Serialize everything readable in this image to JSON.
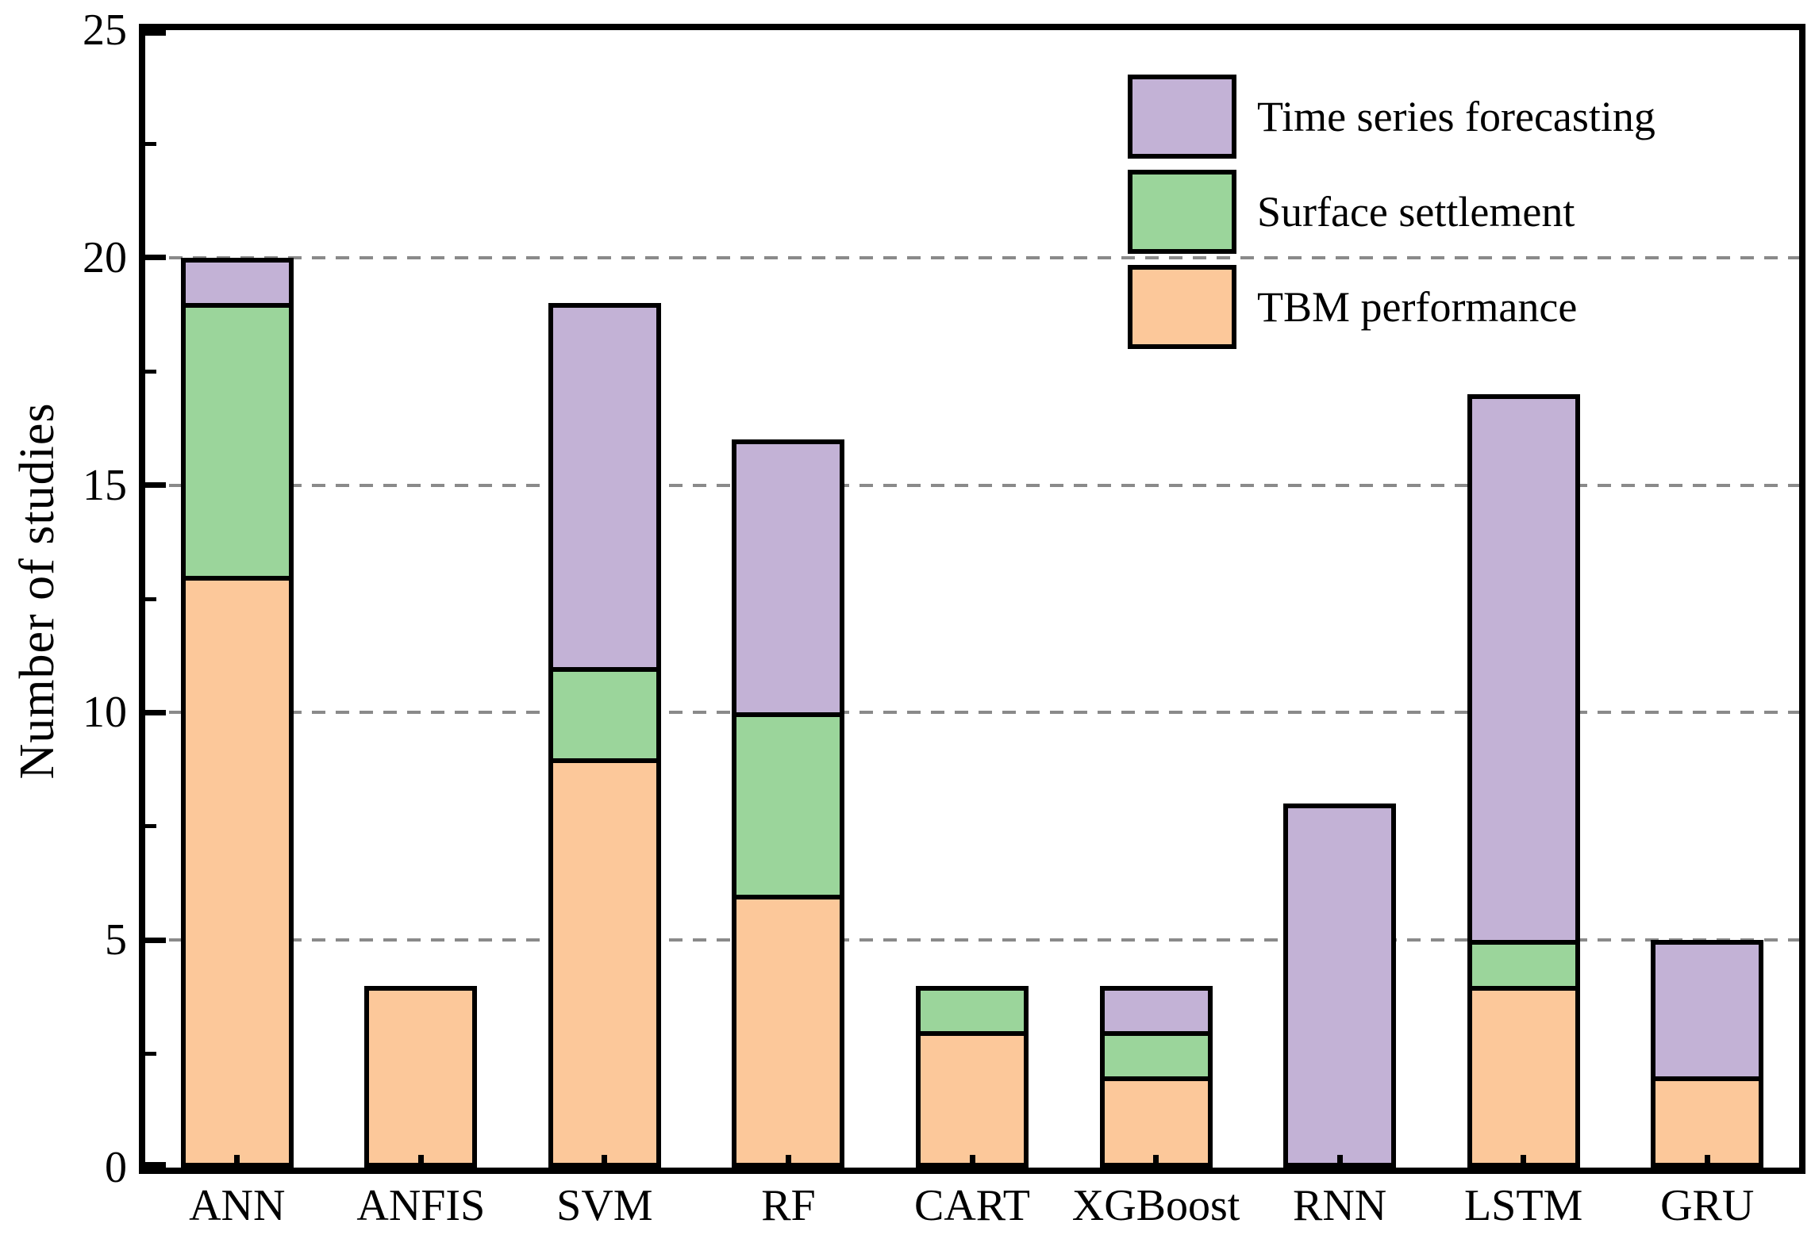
{
  "chart_data": {
    "type": "bar",
    "stacked": true,
    "title": "",
    "xlabel": "",
    "ylabel": "Number of studies",
    "categories": [
      "ANN",
      "ANFIS",
      "SVM",
      "RF",
      "CART",
      "XGBoost",
      "RNN",
      "LSTM",
      "GRU"
    ],
    "series": [
      {
        "name": "TBM performance",
        "color": "#fcc89a",
        "values": [
          13,
          4,
          9,
          6,
          3,
          2,
          0,
          4,
          2
        ]
      },
      {
        "name": "Surface settlement",
        "color": "#9bd59b",
        "values": [
          6,
          0,
          2,
          4,
          1,
          1,
          0,
          1,
          0
        ]
      },
      {
        "name": "Time series forecasting",
        "color": "#c3b2d6",
        "values": [
          1,
          0,
          8,
          6,
          0,
          1,
          8,
          12,
          3
        ]
      }
    ],
    "totals": [
      20,
      4,
      19,
      16,
      4,
      4,
      8,
      17,
      5
    ],
    "ylim": [
      0,
      25
    ],
    "yticks": [
      0,
      5,
      10,
      15,
      20,
      25
    ],
    "yticks_minor": [
      2.5,
      7.5,
      12.5,
      17.5,
      22.5
    ],
    "gridlines_at": [
      5,
      10,
      15,
      20
    ],
    "grid_style": "dashed horizontal, behind bars",
    "grid_color": "#8a8a8a",
    "frame_color": "#000000",
    "legend_position": "upper right, no frame",
    "legend": [
      {
        "label": "Time series forecasting",
        "color": "#c3b2d6"
      },
      {
        "label": "Surface settlement",
        "color": "#9bd59b"
      },
      {
        "label": "TBM performance",
        "color": "#fcc89a"
      }
    ]
  }
}
